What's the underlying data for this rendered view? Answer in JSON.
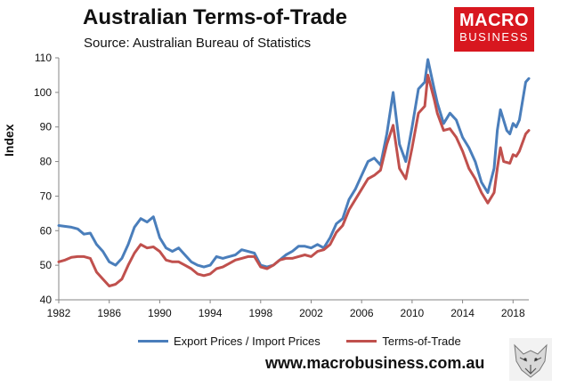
{
  "header": {
    "title": "Australian Terms-of-Trade",
    "subtitle": "Source: Australian Bureau of Statistics",
    "brand_line1": "MACRO",
    "brand_line2": "BUSINESS"
  },
  "footer": {
    "url": "www.macrobusiness.com.au",
    "logo_icon": "wolf-logo-icon"
  },
  "chart_data": {
    "type": "line",
    "title": "Australian Terms-of-Trade",
    "subtitle": "Source: Australian Bureau of Statistics",
    "xlabel": "",
    "ylabel": "Index",
    "xlim": [
      1982,
      2019.25
    ],
    "ylim": [
      40,
      110
    ],
    "x_ticks": [
      1982,
      1986,
      1990,
      1994,
      1998,
      2002,
      2006,
      2010,
      2014,
      2018
    ],
    "y_ticks": [
      40,
      50,
      60,
      70,
      80,
      90,
      100,
      110
    ],
    "grid": false,
    "legend": "bottom",
    "series": [
      {
        "name": "Export Prices / Import Prices",
        "color": "#4a7ebb",
        "points": [
          [
            1982,
            61.5
          ],
          [
            1983,
            61
          ],
          [
            1983.5,
            60.5
          ],
          [
            1984,
            59
          ],
          [
            1984.5,
            59.3
          ],
          [
            1985,
            56
          ],
          [
            1985.5,
            54
          ],
          [
            1986,
            51
          ],
          [
            1986.5,
            50
          ],
          [
            1987,
            52
          ],
          [
            1987.5,
            56
          ],
          [
            1988,
            61
          ],
          [
            1988.5,
            63.5
          ],
          [
            1989,
            62.5
          ],
          [
            1989.5,
            64
          ],
          [
            1990,
            58
          ],
          [
            1990.5,
            55
          ],
          [
            1991,
            54
          ],
          [
            1991.5,
            55
          ],
          [
            1992,
            53
          ],
          [
            1992.5,
            51
          ],
          [
            1993,
            50
          ],
          [
            1993.5,
            49.5
          ],
          [
            1994,
            50
          ],
          [
            1994.5,
            52.5
          ],
          [
            1995,
            52
          ],
          [
            1995.5,
            52.5
          ],
          [
            1996,
            53
          ],
          [
            1996.5,
            54.5
          ],
          [
            1997,
            54
          ],
          [
            1997.5,
            53.5
          ],
          [
            1998,
            50
          ],
          [
            1998.5,
            49.5
          ],
          [
            1999,
            50
          ],
          [
            1999.5,
            51.5
          ],
          [
            2000,
            53
          ],
          [
            2000.5,
            54
          ],
          [
            2001,
            55.5
          ],
          [
            2001.5,
            55.5
          ],
          [
            2002,
            55
          ],
          [
            2002.5,
            56
          ],
          [
            2003,
            55
          ],
          [
            2003.5,
            58
          ],
          [
            2004,
            62
          ],
          [
            2004.5,
            63.5
          ],
          [
            2005,
            69
          ],
          [
            2005.5,
            72
          ],
          [
            2006,
            76
          ],
          [
            2006.5,
            80
          ],
          [
            2007,
            81
          ],
          [
            2007.5,
            79
          ],
          [
            2008,
            88
          ],
          [
            2008.5,
            100
          ],
          [
            2009,
            85
          ],
          [
            2009.5,
            80
          ],
          [
            2010,
            90
          ],
          [
            2010.5,
            101
          ],
          [
            2011,
            103
          ],
          [
            2011.25,
            109.5
          ],
          [
            2011.75,
            101
          ],
          [
            2012,
            97
          ],
          [
            2012.5,
            91
          ],
          [
            2013,
            94
          ],
          [
            2013.5,
            92
          ],
          [
            2014,
            87
          ],
          [
            2014.5,
            84
          ],
          [
            2015,
            80
          ],
          [
            2015.5,
            74
          ],
          [
            2016,
            71
          ],
          [
            2016.5,
            78
          ],
          [
            2016.75,
            89
          ],
          [
            2017,
            95
          ],
          [
            2017.5,
            89
          ],
          [
            2017.75,
            88
          ],
          [
            2018,
            91
          ],
          [
            2018.25,
            90
          ],
          [
            2018.5,
            92
          ],
          [
            2019,
            103
          ],
          [
            2019.25,
            104
          ]
        ]
      },
      {
        "name": "Terms-of-Trade",
        "color": "#c0504d",
        "points": [
          [
            1982,
            51
          ],
          [
            1982.5,
            51.5
          ],
          [
            1983,
            52.3
          ],
          [
            1983.5,
            52.5
          ],
          [
            1984,
            52.5
          ],
          [
            1984.5,
            52
          ],
          [
            1985,
            48
          ],
          [
            1985.5,
            46
          ],
          [
            1986,
            44
          ],
          [
            1986.5,
            44.5
          ],
          [
            1987,
            46
          ],
          [
            1987.5,
            50
          ],
          [
            1988,
            53.5
          ],
          [
            1988.5,
            56
          ],
          [
            1989,
            55
          ],
          [
            1989.5,
            55.3
          ],
          [
            1990,
            54
          ],
          [
            1990.5,
            51.5
          ],
          [
            1991,
            51
          ],
          [
            1991.5,
            51
          ],
          [
            1992,
            50
          ],
          [
            1992.5,
            49
          ],
          [
            1993,
            47.5
          ],
          [
            1993.5,
            47
          ],
          [
            1994,
            47.5
          ],
          [
            1994.5,
            49
          ],
          [
            1995,
            49.5
          ],
          [
            1995.5,
            50.5
          ],
          [
            1996,
            51.5
          ],
          [
            1996.5,
            52
          ],
          [
            1997,
            52.5
          ],
          [
            1997.5,
            52.5
          ],
          [
            1998,
            49.5
          ],
          [
            1998.5,
            49
          ],
          [
            1999,
            50
          ],
          [
            1999.5,
            51.5
          ],
          [
            2000,
            52
          ],
          [
            2000.5,
            52
          ],
          [
            2001,
            52.5
          ],
          [
            2001.5,
            53
          ],
          [
            2002,
            52.5
          ],
          [
            2002.5,
            54
          ],
          [
            2003,
            54.5
          ],
          [
            2003.5,
            56
          ],
          [
            2004,
            59.5
          ],
          [
            2004.5,
            61.5
          ],
          [
            2005,
            66
          ],
          [
            2005.5,
            69
          ],
          [
            2006,
            72
          ],
          [
            2006.5,
            75
          ],
          [
            2007,
            76
          ],
          [
            2007.5,
            77.5
          ],
          [
            2008,
            85
          ],
          [
            2008.5,
            90.5
          ],
          [
            2009,
            78
          ],
          [
            2009.5,
            75
          ],
          [
            2010,
            84
          ],
          [
            2010.5,
            94
          ],
          [
            2011,
            96
          ],
          [
            2011.25,
            105
          ],
          [
            2011.75,
            98
          ],
          [
            2012,
            94
          ],
          [
            2012.5,
            89
          ],
          [
            2013,
            89.5
          ],
          [
            2013.5,
            87
          ],
          [
            2014,
            83
          ],
          [
            2014.5,
            78
          ],
          [
            2015,
            75
          ],
          [
            2015.5,
            71
          ],
          [
            2016,
            68
          ],
          [
            2016.5,
            71
          ],
          [
            2016.75,
            78
          ],
          [
            2017,
            84
          ],
          [
            2017.25,
            80
          ],
          [
            2017.75,
            79.5
          ],
          [
            2018,
            82
          ],
          [
            2018.25,
            81.5
          ],
          [
            2018.5,
            83
          ],
          [
            2019,
            88
          ],
          [
            2019.25,
            89
          ]
        ]
      }
    ]
  }
}
